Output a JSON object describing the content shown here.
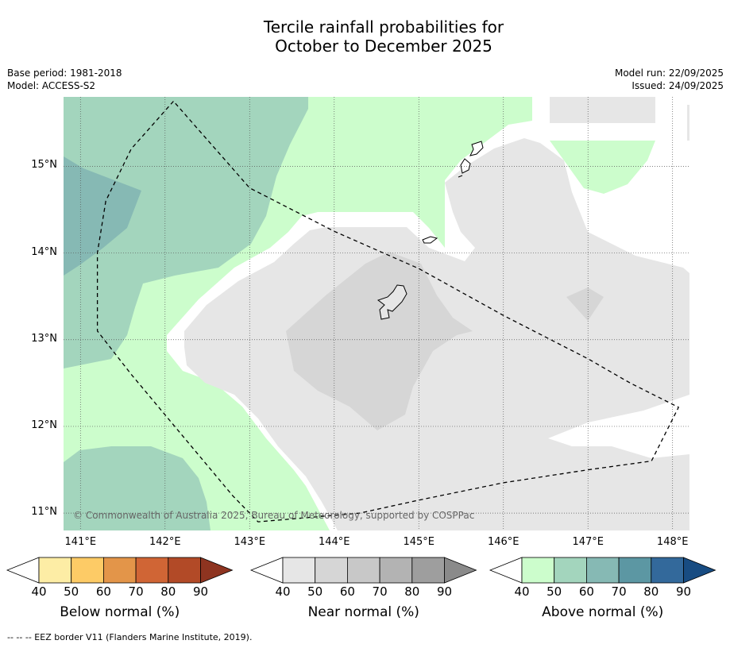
{
  "title_line1": "Tercile rainfall probabilities for",
  "title_line2": "October to December 2025",
  "base_period": "Base period: 1981-2018",
  "model": "Model: ACCESS-S2",
  "model_run": "Model run: 22/09/2025",
  "issued": "Issued: 24/09/2025",
  "copyright": "© Commonwealth of Australia 2025, Bureau of Meteorology, supported by COSPPac",
  "footnote": "--  --  -- EEZ border V11 (Flanders Marine Institute, 2019).",
  "colors": {
    "below": [
      "#fdeda5",
      "#fdcb66",
      "#e39549",
      "#d06535",
      "#b24a27",
      "#8e3420"
    ],
    "near": [
      "#e6e6e6",
      "#d6d6d6",
      "#c8c8c8",
      "#b3b3b3",
      "#9e9e9e",
      "#8a8a8a"
    ],
    "above": [
      "#ccfdcc",
      "#a3d5bd",
      "#86b9b4",
      "#5c97a3",
      "#33699b",
      "#184c82"
    ],
    "gridline": "#555555",
    "eez_border": "#000000"
  },
  "chart_data": {
    "type": "map",
    "map_extent": {
      "lon_range": [
        140.8,
        148.2
      ],
      "lat_range": [
        10.8,
        15.8
      ]
    },
    "x_ticks": [
      {
        "lon": 141,
        "label": "141°E"
      },
      {
        "lon": 142,
        "label": "142°E"
      },
      {
        "lon": 143,
        "label": "143°E"
      },
      {
        "lon": 144,
        "label": "144°E"
      },
      {
        "lon": 145,
        "label": "145°E"
      },
      {
        "lon": 146,
        "label": "146°E"
      },
      {
        "lon": 147,
        "label": "147°E"
      },
      {
        "lon": 148,
        "label": "148°E"
      }
    ],
    "y_ticks": [
      {
        "lat": 15,
        "label": "15°N"
      },
      {
        "lat": 14,
        "label": "14°N"
      },
      {
        "lat": 13,
        "label": "13°N"
      },
      {
        "lat": 12,
        "label": "12°N"
      },
      {
        "lat": 11,
        "label": "11°N"
      }
    ],
    "legends": [
      {
        "key": "below",
        "label": "Below normal (%)",
        "ticks": [
          "40",
          "50",
          "60",
          "70",
          "80",
          "90"
        ]
      },
      {
        "key": "near",
        "label": "Near normal (%)",
        "ticks": [
          "40",
          "50",
          "60",
          "70",
          "80",
          "90"
        ]
      },
      {
        "key": "above",
        "label": "Above normal (%)",
        "ticks": [
          "40",
          "50",
          "60",
          "70",
          "80",
          "90"
        ]
      }
    ],
    "eez_border_lonlat": [
      [
        142.1,
        15.75
      ],
      [
        141.6,
        15.2
      ],
      [
        141.3,
        14.6
      ],
      [
        141.2,
        14.0
      ],
      [
        141.2,
        13.1
      ],
      [
        141.6,
        12.6
      ],
      [
        142.2,
        11.9
      ],
      [
        142.8,
        11.2
      ],
      [
        143.1,
        10.9
      ],
      [
        144.3,
        11.0
      ],
      [
        145.0,
        11.15
      ],
      [
        146.0,
        11.35
      ],
      [
        147.0,
        11.5
      ],
      [
        147.75,
        11.6
      ],
      [
        148.07,
        12.22
      ],
      [
        147.5,
        12.5
      ],
      [
        147.0,
        12.78
      ],
      [
        146.0,
        13.28
      ],
      [
        145.0,
        13.82
      ],
      [
        144.0,
        14.25
      ],
      [
        143.0,
        14.75
      ],
      [
        142.1,
        15.75
      ]
    ],
    "regions": [
      {
        "category": "above",
        "level": 40,
        "desc": "green land-free area, most of map"
      },
      {
        "category": "above",
        "level": 50,
        "desc": "northwest and southwest"
      },
      {
        "category": "above",
        "level": 60,
        "desc": "far west"
      },
      {
        "category": "near",
        "level": 40,
        "desc": "east and centre"
      },
      {
        "category": "near",
        "level": 50,
        "desc": "around Guam"
      }
    ]
  }
}
